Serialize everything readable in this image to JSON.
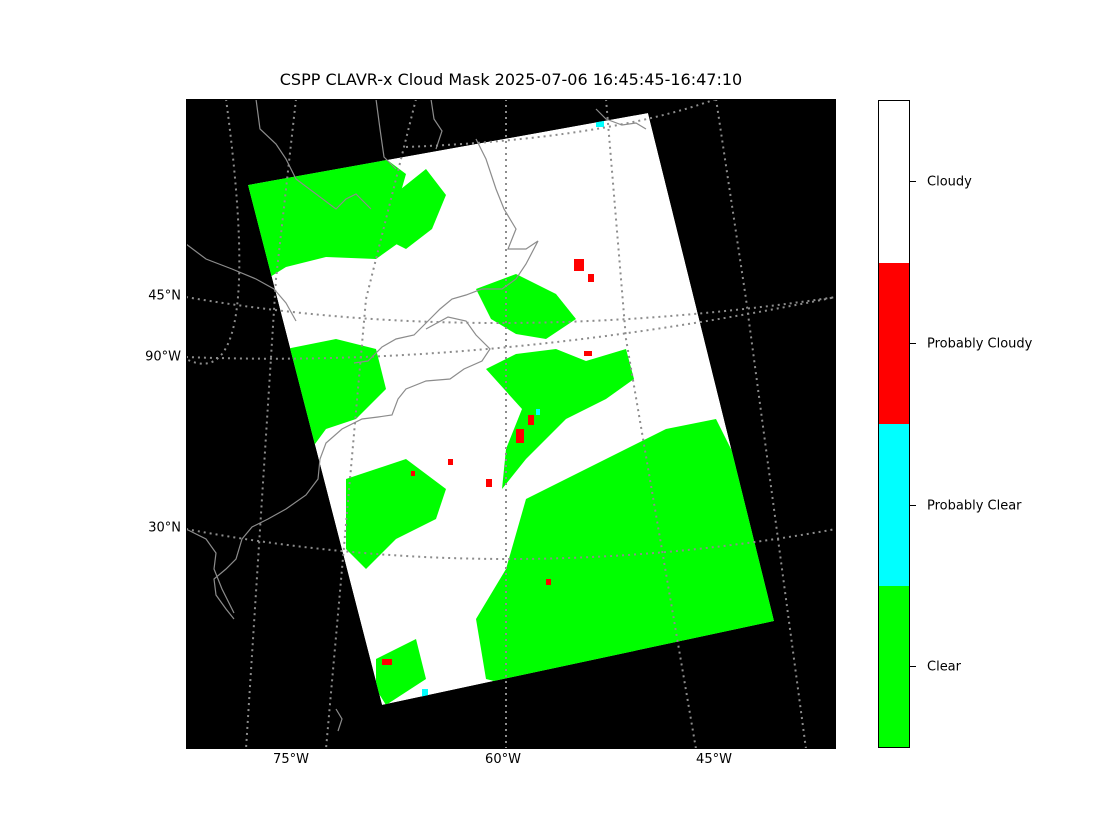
{
  "title": "CSPP CLAVR-x Cloud Mask 2025-07-06 16:45:45-16:47:10",
  "map": {
    "projection": "geostationary-like",
    "lon_labels": [
      "75°W",
      "60°W",
      "45°W"
    ],
    "lat_labels": [
      "45°N",
      "90°W",
      "30°N"
    ],
    "graticule_style": "dotted gray",
    "coastline_color": "#888888"
  },
  "colorbar": {
    "categories": [
      "Clear",
      "Probably Clear",
      "Probably Cloudy",
      "Cloudy"
    ],
    "colors": [
      "#00ff00",
      "#00ffff",
      "#ff0000",
      "#ffffff"
    ]
  },
  "colors": {
    "background": "#000000",
    "clear": "#00ff00",
    "probably_clear": "#00ffff",
    "probably_cloudy": "#ff0000",
    "cloudy": "#ffffff",
    "grid": "#8c8c8c"
  }
}
